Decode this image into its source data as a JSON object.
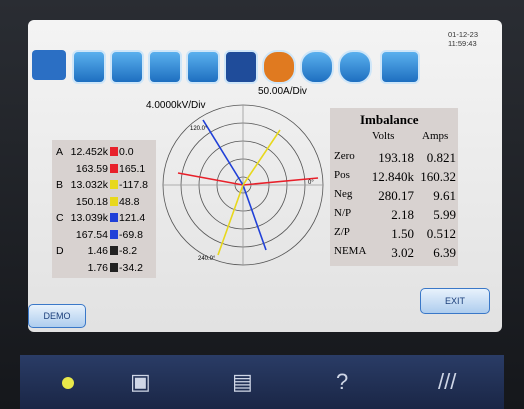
{
  "status": {
    "date": "01-12-23",
    "time": "11:59:43"
  },
  "scales": {
    "voltage": "4.0000kV/Div",
    "current": "50.00A/Div"
  },
  "phases": [
    {
      "label": "A",
      "color": "#e8202a",
      "rows": [
        [
          "12.452k",
          "0.0"
        ],
        [
          "163.59",
          "165.1"
        ]
      ]
    },
    {
      "label": "B",
      "color": "#e8d81c",
      "rows": [
        [
          "13.032k",
          "-117.8"
        ],
        [
          "150.18",
          "48.8"
        ]
      ]
    },
    {
      "label": "C",
      "color": "#2040d8",
      "rows": [
        [
          "13.039k",
          "121.4"
        ],
        [
          "167.54",
          "-69.8"
        ]
      ]
    },
    {
      "label": "D",
      "color": "#222222",
      "rows": [
        [
          "1.46",
          "-8.2"
        ],
        [
          "1.76",
          "-34.2"
        ]
      ]
    }
  ],
  "phasor": {
    "angle_top": "120.0°",
    "angle_bottom": "240.0°",
    "angle_right": "0°"
  },
  "imbalance": {
    "title": "Imbalance",
    "columns": [
      "Volts",
      "Amps"
    ],
    "rows": [
      {
        "label": "Zero",
        "values": [
          "193.18",
          "0.821"
        ]
      },
      {
        "label": "Pos",
        "values": [
          "12.840k",
          "160.32"
        ]
      },
      {
        "label": "Neg",
        "values": [
          "280.17",
          "9.61"
        ]
      },
      {
        "label": "N/P",
        "values": [
          "2.18",
          "5.99"
        ]
      },
      {
        "label": "Z/P",
        "values": [
          "1.50",
          "0.512"
        ]
      },
      {
        "label": "NEMA",
        "values": [
          "3.02",
          "6.39"
        ]
      }
    ]
  },
  "buttons": {
    "demo": "DEMO",
    "exit": "EXIT"
  }
}
